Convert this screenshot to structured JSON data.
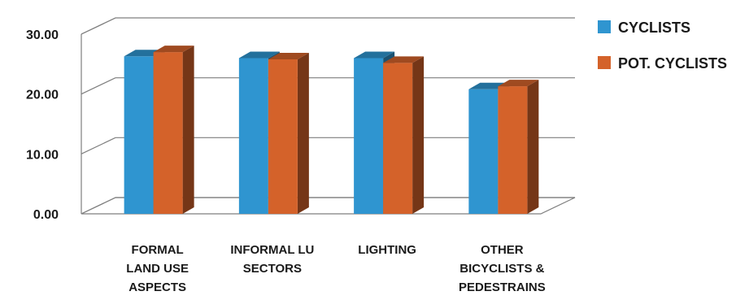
{
  "chart_data": {
    "type": "bar",
    "title": "",
    "xlabel": "",
    "ylabel": "",
    "categories": [
      [
        "FORMAL",
        "LAND USE",
        "ASPECTS"
      ],
      [
        "INFORMAL LU",
        "SECTORS"
      ],
      [
        "LIGHTING"
      ],
      [
        "OTHER",
        "BICYCLISTS &",
        "PEDESTRAINS"
      ]
    ],
    "series": [
      {
        "name": "CYCLISTS",
        "values": [
          26.3,
          26.0,
          26.0,
          20.8
        ],
        "color": "#2f95d0"
      },
      {
        "name": "POT. CYCLISTS",
        "values": [
          27.0,
          25.8,
          25.2,
          21.3
        ],
        "color": "#d4622a"
      }
    ],
    "ylim": [
      0,
      30
    ],
    "yticks": [
      "0.00",
      "10.00",
      "20.00",
      "30.00"
    ],
    "grid": true,
    "legend": "right",
    "style": "3d-clustered-column"
  }
}
